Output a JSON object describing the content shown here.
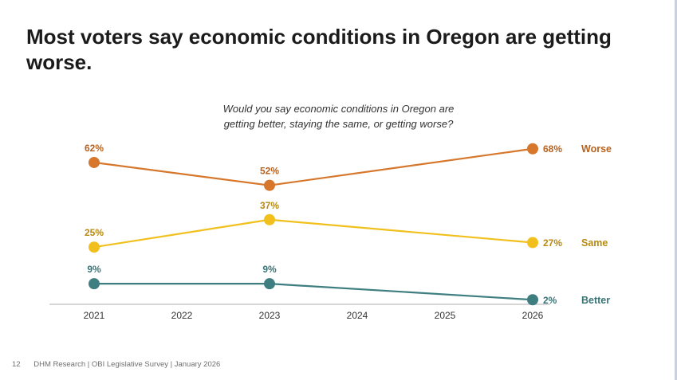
{
  "slide": {
    "title": "Most voters say economic conditions in Oregon are getting worse.",
    "question_line1": "Would you say economic conditions in Oregon are",
    "question_line2": "getting better, staying the same, or getting worse?",
    "page_number": "12",
    "footer": "DHM Research | OBI Legislative Survey | January 2026"
  },
  "chart_data": {
    "type": "line",
    "title": "",
    "x": [
      2021,
      2022,
      2023,
      2024,
      2025,
      2026
    ],
    "tick_labels": [
      "2021",
      "2022",
      "2023",
      "2024",
      "2025",
      "2026"
    ],
    "ylim": [
      0,
      70
    ],
    "grid": false,
    "series": [
      {
        "name": "Worse",
        "color": "#d6772c",
        "label_color": "#b8621f",
        "points": [
          {
            "x": 2021,
            "y": 62,
            "label": "62%"
          },
          {
            "x": 2023,
            "y": 52,
            "label": "52%"
          },
          {
            "x": 2026,
            "y": 68,
            "label": "68%"
          }
        ]
      },
      {
        "name": "Same",
        "color": "#f1c01c",
        "label_color": "#b88a10",
        "points": [
          {
            "x": 2021,
            "y": 25,
            "label": "25%"
          },
          {
            "x": 2023,
            "y": 37,
            "label": "37%"
          },
          {
            "x": 2026,
            "y": 27,
            "label": "27%"
          }
        ]
      },
      {
        "name": "Better",
        "color": "#3f7e80",
        "label_color": "#3a7476",
        "points": [
          {
            "x": 2021,
            "y": 9,
            "label": "9%"
          },
          {
            "x": 2023,
            "y": 9,
            "label": "9%"
          },
          {
            "x": 2026,
            "y": 2,
            "label": "2%"
          }
        ]
      }
    ]
  }
}
